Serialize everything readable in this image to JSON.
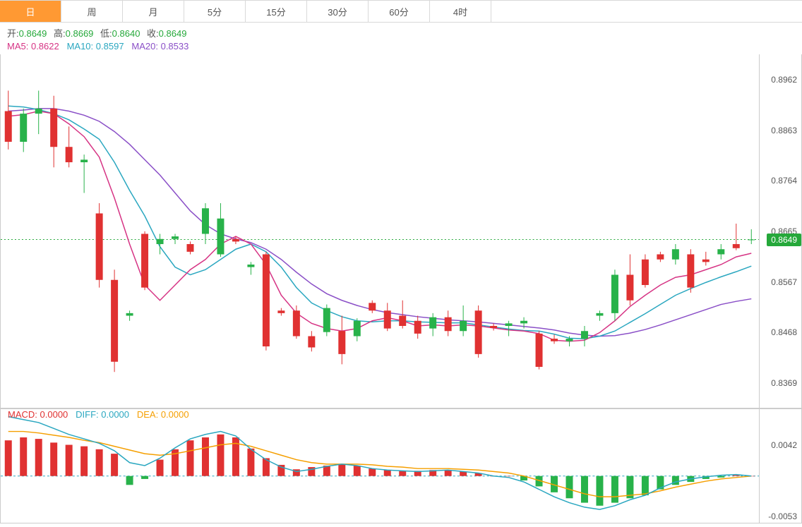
{
  "tabs": {
    "items": [
      "日",
      "周",
      "月",
      "5分",
      "15分",
      "30分",
      "60分",
      "4时"
    ],
    "activeIndex": 0
  },
  "ohlc": {
    "openLabel": "开:",
    "openValue": "0.8649",
    "highLabel": "高:",
    "highValue": "0.8669",
    "lowLabel": "低:",
    "lowValue": "0.8640",
    "closeLabel": "收:",
    "closeValue": "0.8649"
  },
  "ma": {
    "ma5Label": "MA5:",
    "ma5Value": "0.8622",
    "ma10Label": "MA10:",
    "ma10Value": "0.8597",
    "ma20Label": "MA20:",
    "ma20Value": "0.8533"
  },
  "macdLabels": {
    "macdLabel": "MACD:",
    "macdValue": "0.0000",
    "diffLabel": "DIFF:",
    "diffValue": "0.0000",
    "deaLabel": "DEA:",
    "deaValue": "0.0000"
  },
  "mainChart": {
    "type": "candlestick",
    "yAxis": {
      "min": 0.832,
      "max": 0.9011,
      "ticks": [
        0.8962,
        0.8863,
        0.8764,
        0.8665,
        0.8567,
        0.8468,
        0.8369
      ]
    },
    "currentPrice": 0.8649,
    "priceLine": {
      "color": "#25a83a",
      "dash": "2,3"
    },
    "colors": {
      "upBody": "#28b24a",
      "upBorder": "#28b24a",
      "downBody": "#e03131",
      "downBorder": "#e03131",
      "ma5": "#d63384",
      "ma10": "#2aa7c0",
      "ma20": "#8a4fc7",
      "axisText": "#555555",
      "grid": "#e9e9e9",
      "border": "#cccccc",
      "background": "#ffffff"
    },
    "candleWidthPx": 10,
    "lineWidthPx": 1.5,
    "candles": [
      {
        "o": 0.89,
        "h": 0.894,
        "l": 0.8825,
        "c": 0.884
      },
      {
        "o": 0.884,
        "h": 0.8905,
        "l": 0.882,
        "c": 0.8895
      },
      {
        "o": 0.8895,
        "h": 0.894,
        "l": 0.8855,
        "c": 0.8905
      },
      {
        "o": 0.8905,
        "h": 0.893,
        "l": 0.879,
        "c": 0.883
      },
      {
        "o": 0.883,
        "h": 0.887,
        "l": 0.879,
        "c": 0.88
      },
      {
        "o": 0.88,
        "h": 0.8815,
        "l": 0.874,
        "c": 0.8805
      },
      {
        "o": 0.87,
        "h": 0.872,
        "l": 0.8555,
        "c": 0.857
      },
      {
        "o": 0.857,
        "h": 0.859,
        "l": 0.839,
        "c": 0.841
      },
      {
        "o": 0.85,
        "h": 0.851,
        "l": 0.849,
        "c": 0.8505
      },
      {
        "o": 0.866,
        "h": 0.8665,
        "l": 0.855,
        "c": 0.8555
      },
      {
        "o": 0.864,
        "h": 0.866,
        "l": 0.862,
        "c": 0.865
      },
      {
        "o": 0.865,
        "h": 0.866,
        "l": 0.864,
        "c": 0.8655
      },
      {
        "o": 0.864,
        "h": 0.8645,
        "l": 0.862,
        "c": 0.8625
      },
      {
        "o": 0.866,
        "h": 0.872,
        "l": 0.864,
        "c": 0.871
      },
      {
        "o": 0.862,
        "h": 0.872,
        "l": 0.8615,
        "c": 0.869
      },
      {
        "o": 0.865,
        "h": 0.8655,
        "l": 0.864,
        "c": 0.8645
      },
      {
        "o": 0.8595,
        "h": 0.8605,
        "l": 0.858,
        "c": 0.86
      },
      {
        "o": 0.862,
        "h": 0.8625,
        "l": 0.8432,
        "c": 0.844
      },
      {
        "o": 0.851,
        "h": 0.8515,
        "l": 0.85,
        "c": 0.8505
      },
      {
        "o": 0.851,
        "h": 0.852,
        "l": 0.8455,
        "c": 0.846
      },
      {
        "o": 0.846,
        "h": 0.847,
        "l": 0.843,
        "c": 0.8438
      },
      {
        "o": 0.8468,
        "h": 0.8522,
        "l": 0.846,
        "c": 0.8515
      },
      {
        "o": 0.847,
        "h": 0.85,
        "l": 0.8405,
        "c": 0.8425
      },
      {
        "o": 0.846,
        "h": 0.8495,
        "l": 0.845,
        "c": 0.849
      },
      {
        "o": 0.8525,
        "h": 0.853,
        "l": 0.8505,
        "c": 0.851
      },
      {
        "o": 0.851,
        "h": 0.8525,
        "l": 0.847,
        "c": 0.8475
      },
      {
        "o": 0.85,
        "h": 0.853,
        "l": 0.8475,
        "c": 0.848
      },
      {
        "o": 0.849,
        "h": 0.85,
        "l": 0.8455,
        "c": 0.8465
      },
      {
        "o": 0.8475,
        "h": 0.8505,
        "l": 0.846,
        "c": 0.8497
      },
      {
        "o": 0.8497,
        "h": 0.851,
        "l": 0.846,
        "c": 0.847
      },
      {
        "o": 0.847,
        "h": 0.852,
        "l": 0.846,
        "c": 0.849
      },
      {
        "o": 0.851,
        "h": 0.852,
        "l": 0.8418,
        "c": 0.8425
      },
      {
        "o": 0.848,
        "h": 0.8485,
        "l": 0.8471,
        "c": 0.8476
      },
      {
        "o": 0.848,
        "h": 0.849,
        "l": 0.846,
        "c": 0.8485
      },
      {
        "o": 0.8485,
        "h": 0.8497,
        "l": 0.8475,
        "c": 0.849
      },
      {
        "o": 0.8465,
        "h": 0.847,
        "l": 0.8395,
        "c": 0.84
      },
      {
        "o": 0.8455,
        "h": 0.8463,
        "l": 0.8445,
        "c": 0.845
      },
      {
        "o": 0.845,
        "h": 0.846,
        "l": 0.844,
        "c": 0.8455
      },
      {
        "o": 0.8455,
        "h": 0.848,
        "l": 0.844,
        "c": 0.847
      },
      {
        "o": 0.85,
        "h": 0.851,
        "l": 0.849,
        "c": 0.8505
      },
      {
        "o": 0.8505,
        "h": 0.859,
        "l": 0.849,
        "c": 0.858
      },
      {
        "o": 0.858,
        "h": 0.862,
        "l": 0.852,
        "c": 0.853
      },
      {
        "o": 0.861,
        "h": 0.862,
        "l": 0.8555,
        "c": 0.856
      },
      {
        "o": 0.862,
        "h": 0.8625,
        "l": 0.8605,
        "c": 0.861
      },
      {
        "o": 0.861,
        "h": 0.864,
        "l": 0.86,
        "c": 0.863
      },
      {
        "o": 0.862,
        "h": 0.863,
        "l": 0.8545,
        "c": 0.8555
      },
      {
        "o": 0.861,
        "h": 0.8625,
        "l": 0.8598,
        "c": 0.8605
      },
      {
        "o": 0.862,
        "h": 0.864,
        "l": 0.861,
        "c": 0.863
      },
      {
        "o": 0.864,
        "h": 0.868,
        "l": 0.8628,
        "c": 0.8632
      },
      {
        "o": 0.8649,
        "h": 0.8669,
        "l": 0.864,
        "c": 0.8649
      }
    ],
    "ma5": [
      0.889,
      0.8893,
      0.89,
      0.8895,
      0.8875,
      0.885,
      0.881,
      0.873,
      0.864,
      0.856,
      0.853,
      0.856,
      0.859,
      0.861,
      0.864,
      0.8655,
      0.864,
      0.86,
      0.854,
      0.8505,
      0.8485,
      0.8475,
      0.847,
      0.8475,
      0.849,
      0.8496,
      0.849,
      0.848,
      0.8482,
      0.848,
      0.8482,
      0.848,
      0.8476,
      0.8472,
      0.847,
      0.8465,
      0.8452,
      0.845,
      0.8452,
      0.8467,
      0.849,
      0.8518,
      0.854,
      0.856,
      0.8575,
      0.858,
      0.859,
      0.86,
      0.8615,
      0.8622
    ],
    "ma10": [
      0.891,
      0.8908,
      0.8903,
      0.8895,
      0.8883,
      0.8865,
      0.8845,
      0.88,
      0.8745,
      0.8695,
      0.8635,
      0.8595,
      0.858,
      0.859,
      0.861,
      0.863,
      0.864,
      0.8625,
      0.8595,
      0.8555,
      0.8525,
      0.851,
      0.8498,
      0.849,
      0.8488,
      0.849,
      0.849,
      0.8488,
      0.8487,
      0.8486,
      0.8486,
      0.8482,
      0.8478,
      0.8474,
      0.8471,
      0.847,
      0.8464,
      0.8456,
      0.8455,
      0.846,
      0.847,
      0.8487,
      0.8504,
      0.8522,
      0.854,
      0.8553,
      0.8565,
      0.8576,
      0.8586,
      0.8597
    ],
    "ma20": [
      0.89,
      0.8902,
      0.8905,
      0.8905,
      0.89,
      0.8892,
      0.888,
      0.886,
      0.8835,
      0.8805,
      0.8775,
      0.874,
      0.8705,
      0.8678,
      0.866,
      0.865,
      0.8643,
      0.863,
      0.861,
      0.8585,
      0.8562,
      0.8543,
      0.853,
      0.852,
      0.8512,
      0.8506,
      0.8502,
      0.8498,
      0.8495,
      0.8492,
      0.849,
      0.8488,
      0.8485,
      0.8482,
      0.8479,
      0.8476,
      0.8472,
      0.8466,
      0.8462,
      0.846,
      0.8461,
      0.8466,
      0.8473,
      0.8482,
      0.8492,
      0.8502,
      0.8512,
      0.8522,
      0.8528,
      0.8533
    ]
  },
  "macdChart": {
    "type": "macd",
    "yAxis": {
      "min": -0.0063,
      "max": 0.009,
      "ticks": [
        0.0042,
        -0.0053
      ]
    },
    "colors": {
      "barPositive": "#e03131",
      "barNegative": "#28b24a",
      "diffLine": "#2aa7c0",
      "deaLine": "#f59f00",
      "axisText": "#555555",
      "border": "#cccccc",
      "zeroLine": "#2aa7c0"
    },
    "histogram": [
      0.0048,
      0.0052,
      0.005,
      0.0045,
      0.0042,
      0.004,
      0.0036,
      0.003,
      -0.0012,
      -0.0004,
      0.0022,
      0.0036,
      0.0048,
      0.0052,
      0.0056,
      0.0052,
      0.0037,
      0.0024,
      0.0015,
      0.0009,
      0.0012,
      0.0014,
      0.0016,
      0.0014,
      0.001,
      0.0008,
      0.0007,
      0.0007,
      0.0008,
      0.0008,
      0.0006,
      0.0004,
      0,
      0,
      -0.0006,
      -0.0014,
      -0.0022,
      -0.003,
      -0.0036,
      -0.004,
      -0.0036,
      -0.003,
      -0.0026,
      -0.0018,
      -0.0012,
      -0.0008,
      -0.0004,
      -0.0002,
      0.0001,
      0.0
    ],
    "diff": [
      0.008,
      0.0076,
      0.0072,
      0.0064,
      0.0056,
      0.005,
      0.0044,
      0.0034,
      0.0018,
      0.0014,
      0.0024,
      0.0038,
      0.005,
      0.0056,
      0.006,
      0.0054,
      0.0036,
      0.0022,
      0.0012,
      0.0006,
      0.0009,
      0.0013,
      0.0016,
      0.0014,
      0.001,
      0.0008,
      0.0007,
      0.0006,
      0.0007,
      0.0008,
      0.0006,
      0.0004,
      0.0,
      -0.0002,
      -0.0008,
      -0.0018,
      -0.0028,
      -0.0036,
      -0.0042,
      -0.0045,
      -0.004,
      -0.0032,
      -0.0026,
      -0.0016,
      -0.0008,
      -0.0004,
      -0.0001,
      0.0001,
      0.0002,
      0.0
    ],
    "dea": [
      0.006,
      0.006,
      0.0058,
      0.0055,
      0.0052,
      0.0048,
      0.0045,
      0.004,
      0.0035,
      0.003,
      0.0028,
      0.003,
      0.0034,
      0.0038,
      0.0042,
      0.0044,
      0.004,
      0.0034,
      0.0028,
      0.0022,
      0.0018,
      0.0016,
      0.0016,
      0.0016,
      0.0015,
      0.0013,
      0.0012,
      0.001,
      0.001,
      0.001,
      0.0009,
      0.0008,
      0.0006,
      0.0004,
      0.0,
      -0.0006,
      -0.0012,
      -0.0018,
      -0.0024,
      -0.0028,
      -0.0028,
      -0.0026,
      -0.0024,
      -0.002,
      -0.0015,
      -0.0011,
      -0.0007,
      -0.0004,
      -0.0002,
      0.0
    ],
    "zeroDash": "3,3",
    "barWidthPx": 10,
    "lineWidthPx": 1.5
  }
}
